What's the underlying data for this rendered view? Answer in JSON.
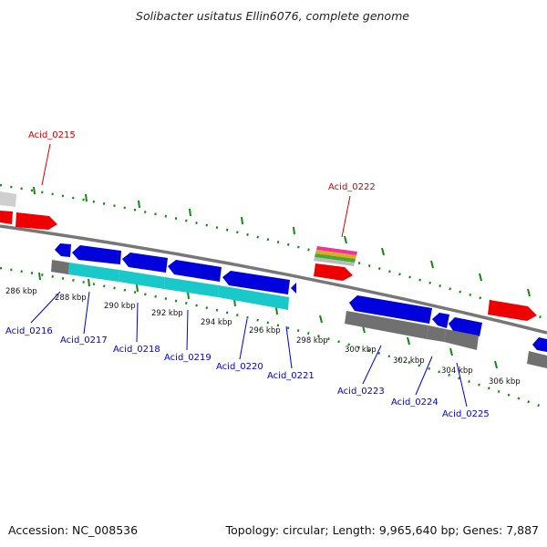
{
  "title": "Solibacter usitatus Ellin6076, complete genome",
  "footer": {
    "accession": "Accession: NC_008536",
    "topology": "Topology: circular; Length: 9,965,640 bp; Genes: 7,887"
  },
  "colors": {
    "forward_cds": "#ee0000",
    "reverse_cds": "#0000dd",
    "cds_label_top": "#cc0000",
    "cds_label_bottom": "#0000cc",
    "backbone": "#777777",
    "tick": "#118811",
    "gene_gray": "#707070",
    "gene_cyan": "#19c8c8",
    "rna_stripes": [
      "#ee3399",
      "#ddaa22",
      "#44aa33",
      "#bbbbbb"
    ]
  },
  "kbp_ticks": [
    "286 kbp",
    "288 kbp",
    "290 kbp",
    "292 kbp",
    "294 kbp",
    "296 kbp",
    "298 kbp",
    "300 kbp",
    "302 kbp",
    "304 kbp",
    "306 kbp"
  ],
  "labels_top": [
    "Acid_0215",
    "Acid_0222"
  ],
  "labels_bottom": [
    "Acid_0216",
    "Acid_0217",
    "Acid_0218",
    "Acid_0219",
    "Acid_0220",
    "Acid_0221",
    "Acid_0223",
    "Acid_0224",
    "Acid_0225"
  ]
}
